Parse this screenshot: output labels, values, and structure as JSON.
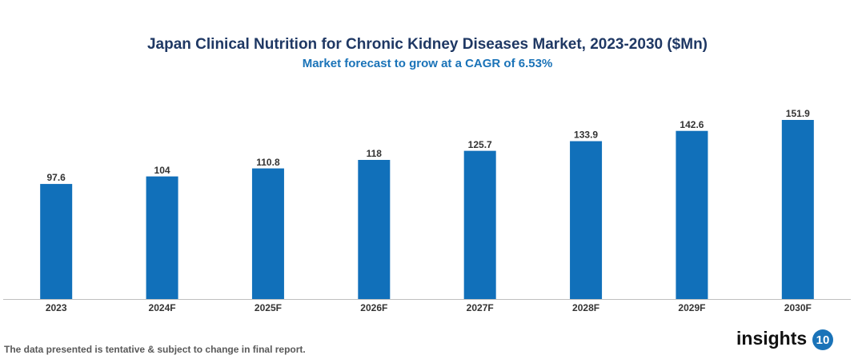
{
  "chart_data": {
    "type": "bar",
    "title": "Japan Clinical Nutrition for Chronic Kidney Diseases Market, 2023-2030 ($Mn)",
    "subtitle": "Market forecast to grow at a CAGR of 6.53%",
    "categories": [
      "2023",
      "2024F",
      "2025F",
      "2026F",
      "2027F",
      "2028F",
      "2029F",
      "2030F"
    ],
    "values": [
      97.6,
      104,
      110.8,
      118,
      125.7,
      133.9,
      142.6,
      151.9
    ],
    "color": "#1170ba"
  },
  "footnote": "The data presented is tentative & subject to change in final report.",
  "brand": {
    "name": "insights",
    "badge": "10"
  }
}
